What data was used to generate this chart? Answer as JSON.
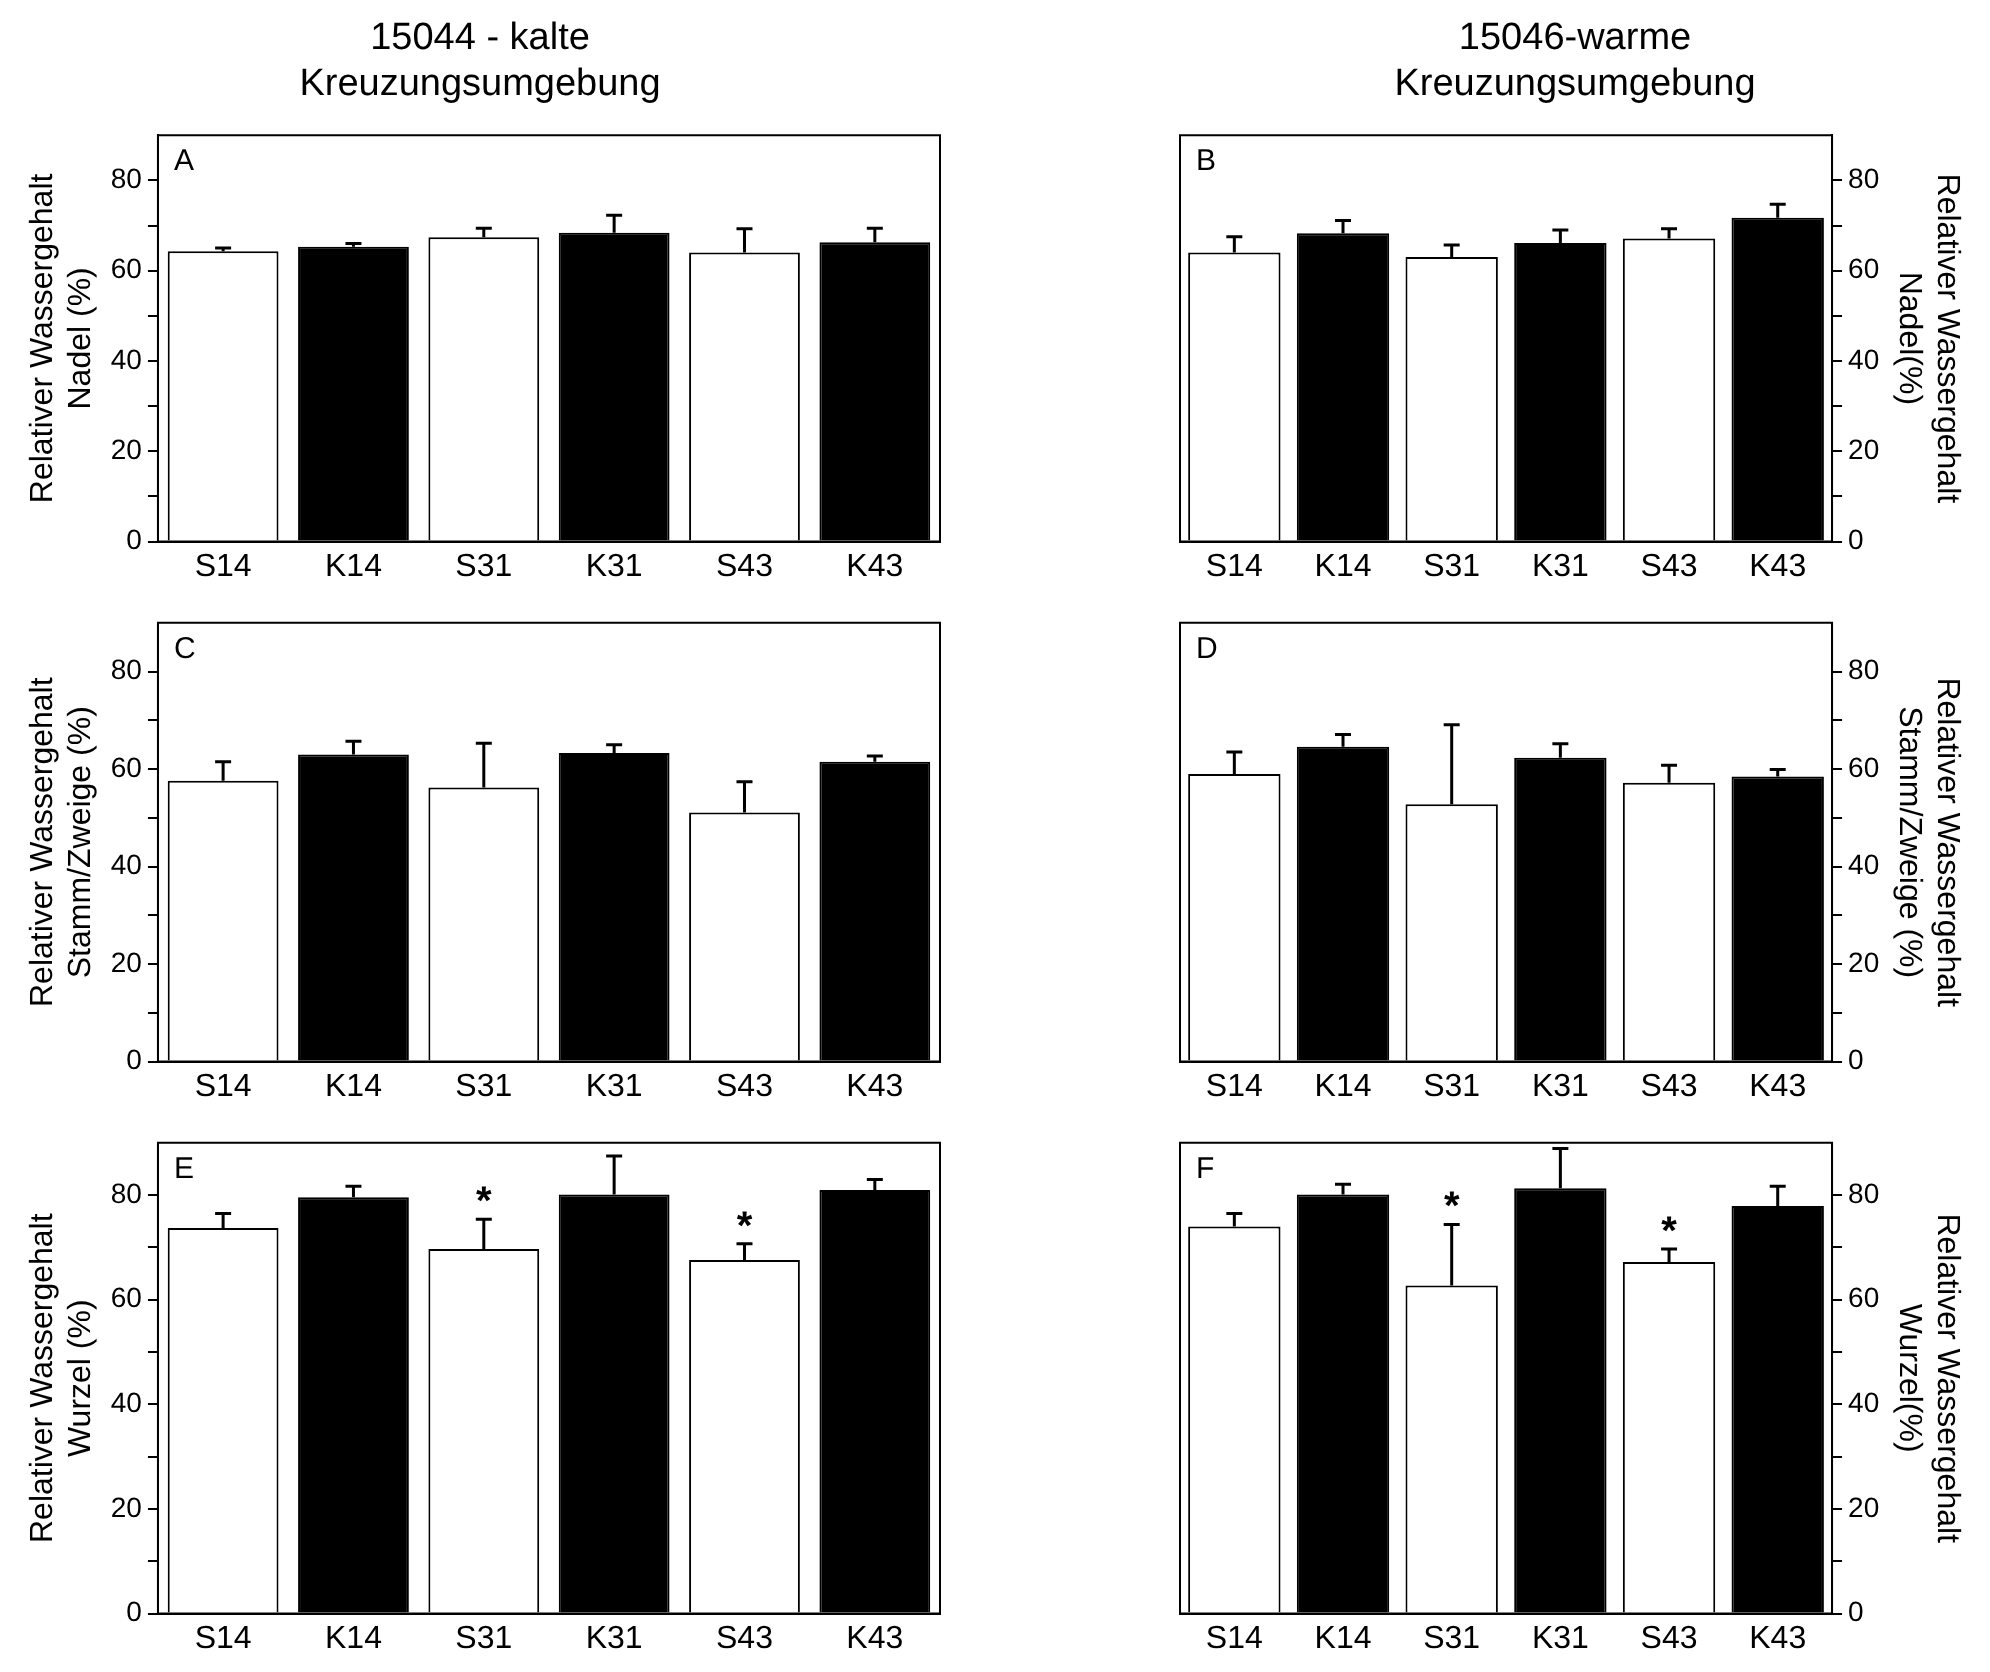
{
  "chart_data": [
    {
      "type": "bar",
      "title": "15044 - kalte\nKreuzungsumgebung",
      "ylabel": "Relativer Wassergehalt\nNadel (%)",
      "categories": [
        "S14",
        "K14",
        "S31",
        "K31",
        "S43",
        "K43"
      ],
      "series": [
        {
          "colors": [
            "#ffffff",
            "#000000",
            "#ffffff",
            "#000000",
            "#ffffff",
            "#000000"
          ],
          "values": [
            64.3,
            65.3,
            67.4,
            68.4,
            64.0,
            66.3
          ],
          "errors": [
            [
              64.3,
              65.0
            ],
            [
              65.3,
              66.0
            ],
            [
              67.4,
              69.4
            ],
            [
              68.4,
              72.3
            ],
            [
              64.0,
              69.3
            ],
            [
              66.3,
              69.4
            ]
          ]
        }
      ],
      "ylim": [
        0,
        90
      ],
      "yticks": [
        0,
        {
          "value": 10,
          "label": null
        },
        20,
        {
          "value": 30,
          "label": null
        },
        40,
        {
          "value": 50,
          "label": null
        },
        60,
        {
          "value": 70,
          "label": null
        },
        80
      ],
      "grid": false,
      "annotations": [
        "A"
      ]
    },
    {
      "type": "bar",
      "title": "15046-warme\nKreuzungsumgebung",
      "ylabel": "Relativer Wassergehalt\nNadel(%)",
      "categories": [
        "S14",
        "K14",
        "S31",
        "K31",
        "S43",
        "K43"
      ],
      "series": [
        {
          "colors": [
            "#ffffff",
            "#000000",
            "#ffffff",
            "#000000",
            "#ffffff",
            "#000000"
          ],
          "values": [
            64.0,
            68.3,
            63.0,
            66.1,
            67.1,
            71.7
          ],
          "errors": [
            [
              64.0,
              67.5
            ],
            [
              68.3,
              71.1
            ],
            [
              63.0,
              65.7
            ],
            [
              66.1,
              69.0
            ],
            [
              67.1,
              69.3
            ],
            [
              71.7,
              74.7
            ]
          ]
        }
      ],
      "ylim": [
        0,
        90
      ],
      "yticks": [
        0,
        {
          "value": 10,
          "label": null
        },
        20,
        {
          "value": 30,
          "label": null
        },
        40,
        {
          "value": 50,
          "label": null
        },
        60,
        {
          "value": 70,
          "label": null
        },
        80
      ],
      "grid": false,
      "annotations": [
        "B"
      ]
    },
    {
      "type": "bar",
      "ylabel": "Relativer Wassergehalt\nStamm/Zweige (%)",
      "categories": [
        "S14",
        "K14",
        "S31",
        "K31",
        "S43",
        "K43"
      ],
      "series": [
        {
          "colors": [
            "#ffffff",
            "#000000",
            "#ffffff",
            "#000000",
            "#ffffff",
            "#000000"
          ],
          "values": [
            57.6,
            63.0,
            56.2,
            63.3,
            51.1,
            61.5
          ],
          "errors": [
            [
              57.6,
              61.5
            ],
            [
              63.0,
              65.7
            ],
            [
              56.2,
              65.3
            ],
            [
              63.3,
              65.0
            ],
            [
              51.1,
              57.4
            ],
            [
              61.5,
              62.7
            ]
          ]
        }
      ],
      "ylim": [
        0,
        90
      ],
      "yticks": [
        0,
        {
          "value": 10,
          "label": null
        },
        20,
        {
          "value": 30,
          "label": null
        },
        40,
        {
          "value": 50,
          "label": null
        },
        60,
        {
          "value": 70,
          "label": null
        },
        80
      ],
      "grid": false,
      "annotations": [
        "C"
      ]
    },
    {
      "type": "bar",
      "ylabel": "Relativer Wassergehalt\nStamm/Zweige (%)",
      "categories": [
        "S14",
        "K14",
        "S31",
        "K31",
        "S43",
        "K43"
      ],
      "series": [
        {
          "colors": [
            "#ffffff",
            "#000000",
            "#ffffff",
            "#000000",
            "#ffffff",
            "#000000"
          ],
          "values": [
            59.0,
            64.6,
            52.8,
            62.3,
            57.2,
            58.5
          ],
          "errors": [
            [
              59.0,
              63.5
            ],
            [
              64.6,
              67.1
            ],
            [
              52.8,
              69.1
            ],
            [
              62.3,
              65.2
            ],
            [
              57.2,
              60.8
            ],
            [
              58.5,
              59.9
            ]
          ]
        }
      ],
      "ylim": [
        0,
        90
      ],
      "yticks": [
        0,
        {
          "value": 10,
          "label": null
        },
        20,
        {
          "value": 30,
          "label": null
        },
        40,
        {
          "value": 50,
          "label": null
        },
        60,
        {
          "value": 70,
          "label": null
        },
        80
      ],
      "grid": false,
      "annotations": [
        "D"
      ]
    },
    {
      "type": "bar",
      "ylabel": "Relativer Wassergehalt\nWurzel (%)",
      "categories": [
        "S14",
        "K14",
        "S31",
        "K31",
        "S43",
        "K43"
      ],
      "series": [
        {
          "colors": [
            "#ffffff",
            "#000000",
            "#ffffff",
            "#000000",
            "#ffffff",
            "#000000"
          ],
          "values": [
            73.7,
            79.6,
            69.7,
            80.1,
            67.6,
            81.0
          ],
          "errors": [
            [
              73.7,
              76.5
            ],
            [
              79.6,
              81.7
            ],
            [
              69.7,
              75.4
            ],
            [
              80.1,
              87.5
            ],
            [
              67.6,
              70.7
            ],
            [
              81.0,
              83.0
            ]
          ]
        }
      ],
      "ylim": [
        0,
        90
      ],
      "yticks": [
        0,
        {
          "value": 10,
          "label": null
        },
        20,
        {
          "value": 30,
          "label": null
        },
        40,
        {
          "value": 50,
          "label": null
        },
        60,
        {
          "value": 70,
          "label": null
        },
        80
      ],
      "grid": false,
      "annotations": [
        "E",
        {
          "text": "*",
          "x": "S31",
          "y": 75.4
        },
        {
          "text": "*",
          "x": "S43",
          "y": 70.7
        }
      ]
    },
    {
      "type": "bar",
      "ylabel": "Relativer Wassergehalt\nWurzel(%)",
      "categories": [
        "S14",
        "K14",
        "S31",
        "K31",
        "S43",
        "K43"
      ],
      "series": [
        {
          "colors": [
            "#ffffff",
            "#000000",
            "#ffffff",
            "#000000",
            "#ffffff",
            "#000000"
          ],
          "values": [
            74.0,
            80.1,
            62.7,
            81.3,
            67.2,
            77.9
          ],
          "errors": [
            [
              74.0,
              76.5
            ],
            [
              80.1,
              82.1
            ],
            [
              62.7,
              74.4
            ],
            [
              81.3,
              88.9
            ],
            [
              67.2,
              69.7
            ],
            [
              77.9,
              81.7
            ]
          ]
        }
      ],
      "ylim": [
        0,
        90
      ],
      "yticks": [
        0,
        {
          "value": 10,
          "label": null
        },
        20,
        {
          "value": 30,
          "label": null
        },
        40,
        {
          "value": 50,
          "label": null
        },
        60,
        {
          "value": 70,
          "label": null
        },
        80
      ],
      "grid": false,
      "annotations": [
        "F",
        {
          "text": "*",
          "x": "S31",
          "y": 74.4
        },
        {
          "text": "*",
          "x": "S43",
          "y": 69.7
        }
      ]
    }
  ]
}
